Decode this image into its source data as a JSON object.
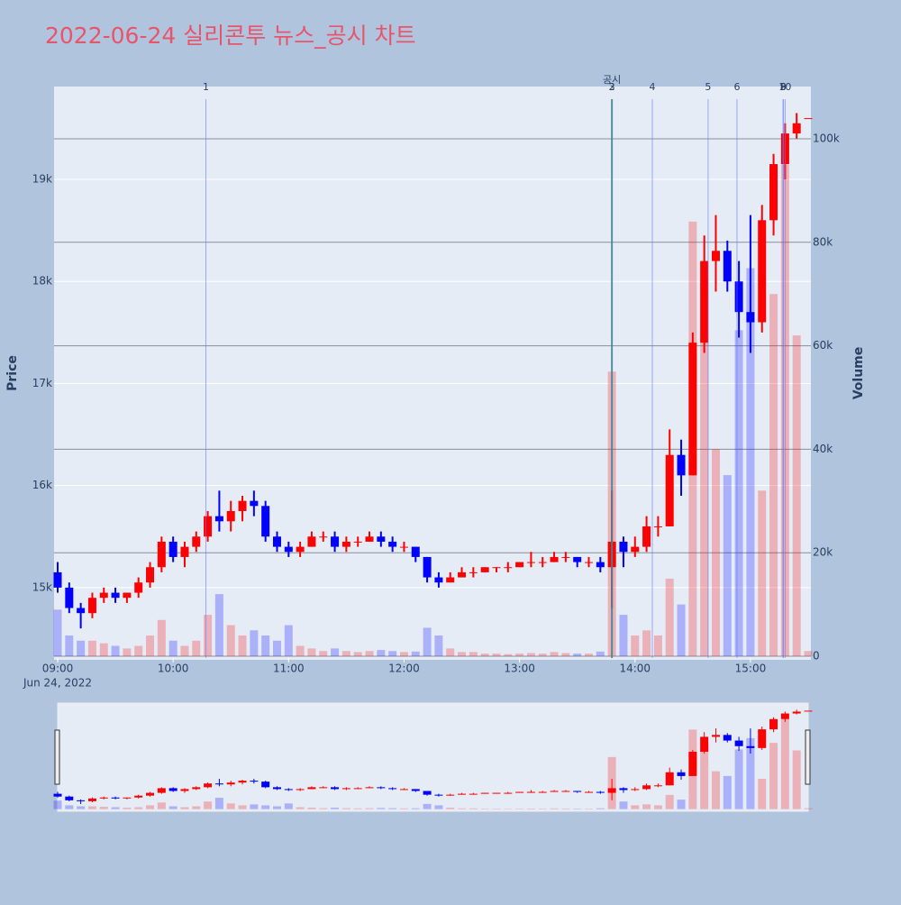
{
  "chart_data": {
    "type": "candlestick",
    "title": "2022-06-24 실리콘투 뉴스_공시 차트",
    "y_label": "Price",
    "y2_label": "Volume",
    "x_date_label": "Jun 24, 2022",
    "up_color": "#ff0000",
    "down_color": "#0000ff",
    "x": [
      "09:00",
      "09:06",
      "09:12",
      "09:18",
      "09:24",
      "09:30",
      "09:36",
      "09:42",
      "09:48",
      "09:54",
      "10:00",
      "10:06",
      "10:12",
      "10:18",
      "10:24",
      "10:30",
      "10:36",
      "10:42",
      "10:48",
      "10:54",
      "11:00",
      "11:06",
      "11:12",
      "11:18",
      "11:24",
      "11:30",
      "11:36",
      "11:42",
      "11:48",
      "11:54",
      "12:00",
      "12:06",
      "12:12",
      "12:18",
      "12:24",
      "12:30",
      "12:36",
      "12:42",
      "12:48",
      "12:54",
      "13:00",
      "13:06",
      "13:12",
      "13:18",
      "13:24",
      "13:30",
      "13:36",
      "13:42",
      "13:48",
      "13:54",
      "14:00",
      "14:06",
      "14:12",
      "14:18",
      "14:24",
      "14:30",
      "14:36",
      "14:42",
      "14:48",
      "14:54",
      "15:00",
      "15:06",
      "15:12",
      "15:18",
      "15:24",
      "15:30"
    ],
    "open": [
      15150,
      15000,
      14800,
      14750,
      14900,
      14950,
      14900,
      14950,
      15050,
      15200,
      15450,
      15300,
      15400,
      15500,
      15700,
      15650,
      15750,
      15850,
      15800,
      15500,
      15400,
      15350,
      15400,
      15500,
      15500,
      15400,
      15450,
      15450,
      15500,
      15450,
      15400,
      15400,
      15300,
      15100,
      15050,
      15100,
      15150,
      15150,
      15200,
      15200,
      15200,
      15250,
      15250,
      15250,
      15300,
      15300,
      15250,
      15250,
      15200,
      15450,
      15350,
      15400,
      15600,
      15600,
      16300,
      16100,
      17400,
      18200,
      18300,
      18000,
      17700,
      17600,
      18600,
      19150,
      19450,
      19600
    ],
    "high": [
      15250,
      15050,
      14850,
      14950,
      15000,
      15000,
      14950,
      15100,
      15250,
      15500,
      15500,
      15450,
      15550,
      15750,
      15950,
      15850,
      15900,
      15950,
      15850,
      15550,
      15450,
      15450,
      15550,
      15550,
      15550,
      15500,
      15500,
      15550,
      15550,
      15500,
      15450,
      15400,
      15300,
      15150,
      15150,
      15200,
      15200,
      15200,
      15200,
      15250,
      15250,
      15350,
      15300,
      15350,
      15350,
      15300,
      15300,
      15300,
      15950,
      15500,
      15500,
      15700,
      15700,
      16550,
      16450,
      17500,
      18450,
      18650,
      18400,
      18200,
      18650,
      18750,
      19250,
      19550,
      19650,
      19600
    ],
    "low": [
      14950,
      14750,
      14600,
      14700,
      14850,
      14850,
      14850,
      14900,
      15000,
      15150,
      15250,
      15200,
      15350,
      15450,
      15550,
      15550,
      15650,
      15700,
      15450,
      15350,
      15300,
      15300,
      15400,
      15450,
      15350,
      15350,
      15400,
      15450,
      15400,
      15350,
      15350,
      15250,
      15050,
      15000,
      15050,
      15100,
      15100,
      15150,
      15150,
      15150,
      15200,
      15200,
      15200,
      15250,
      15250,
      15200,
      15200,
      15150,
      14800,
      15200,
      15300,
      15350,
      15500,
      15600,
      15900,
      16100,
      17300,
      17900,
      17900,
      17450,
      17300,
      17500,
      18450,
      19000,
      19400,
      19600
    ],
    "close": [
      15000,
      14800,
      14750,
      14900,
      14950,
      14900,
      14950,
      15050,
      15200,
      15450,
      15300,
      15400,
      15500,
      15700,
      15650,
      15750,
      15850,
      15800,
      15500,
      15400,
      15350,
      15400,
      15500,
      15500,
      15400,
      15450,
      15450,
      15500,
      15450,
      15400,
      15400,
      15300,
      15100,
      15050,
      15100,
      15150,
      15150,
      15200,
      15200,
      15200,
      15250,
      15250,
      15250,
      15300,
      15300,
      15250,
      15250,
      15200,
      15450,
      15350,
      15400,
      15600,
      15600,
      16300,
      16100,
      17400,
      18200,
      18300,
      18000,
      17700,
      17600,
      18600,
      19150,
      19450,
      19550,
      19600
    ],
    "volume": [
      9000,
      4000,
      3000,
      3000,
      2500,
      2000,
      1500,
      2000,
      4000,
      7000,
      3000,
      2000,
      3000,
      8000,
      12000,
      6000,
      4000,
      5000,
      4000,
      3000,
      6000,
      2000,
      1500,
      1000,
      1500,
      1000,
      800,
      1000,
      1200,
      1000,
      800,
      900,
      5500,
      4000,
      1500,
      800,
      800,
      500,
      500,
      400,
      500,
      600,
      500,
      800,
      600,
      500,
      500,
      900,
      55000,
      8000,
      4000,
      5000,
      4000,
      15000,
      10000,
      84000,
      70000,
      40000,
      35000,
      63000,
      75000,
      32000,
      70000,
      95000,
      62000,
      1000
    ],
    "xlim": [
      "09:00",
      "15:30"
    ],
    "xticks": [
      "09:00",
      "10:00",
      "11:00",
      "12:00",
      "13:00",
      "14:00",
      "15:00"
    ],
    "ylim": [
      14310,
      19910
    ],
    "yticks": [
      {
        "value": 15000,
        "label": "15k"
      },
      {
        "value": 16000,
        "label": "16k"
      },
      {
        "value": 17000,
        "label": "17k"
      },
      {
        "value": 18000,
        "label": "18k"
      },
      {
        "value": 19000,
        "label": "19k"
      }
    ],
    "y2lim": [
      -350,
      110100
    ],
    "y2ticks": [
      0,
      {
        "value": 20000,
        "label": "20k"
      },
      {
        "value": 40000,
        "label": "40k"
      },
      {
        "value": 60000,
        "label": "60k"
      },
      {
        "value": 80000,
        "label": "80k"
      },
      {
        "value": 100000,
        "label": "100k"
      }
    ],
    "disclosures": [
      {
        "x": "13:48",
        "label": "공시"
      }
    ],
    "news": [
      {
        "x": "10:17",
        "label": "1"
      },
      {
        "x": "13:48",
        "label": "2"
      },
      {
        "x": "13:48",
        "label": "3"
      },
      {
        "x": "14:09",
        "label": "4"
      },
      {
        "x": "14:38",
        "label": "5"
      },
      {
        "x": "14:53",
        "label": "6"
      },
      {
        "x": "15:17",
        "label": "8"
      },
      {
        "x": "15:17",
        "label": "9"
      },
      {
        "x": "15:18",
        "label": "10"
      }
    ],
    "rangeslider": true
  }
}
